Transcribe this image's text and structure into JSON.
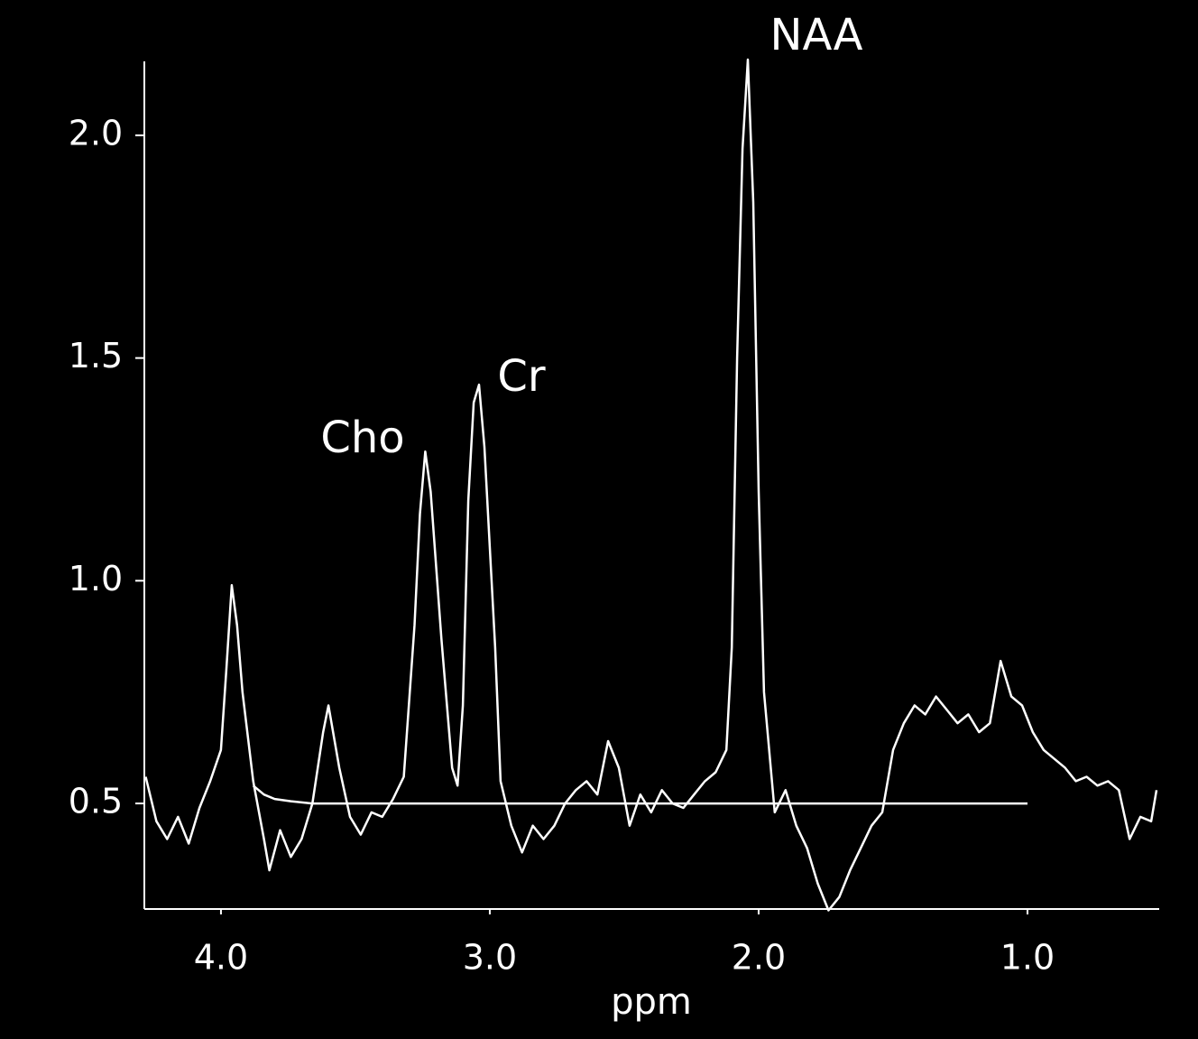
{
  "chart_data": {
    "type": "line",
    "xlabel": "ppm",
    "xlim": [
      4.285,
      0.51
    ],
    "ylim": [
      0.263,
      2.166
    ],
    "xticks": [
      {
        "value": 4,
        "label": "4.0"
      },
      {
        "value": 3,
        "label": "3.0"
      },
      {
        "value": 2,
        "label": "2.0"
      },
      {
        "value": 1,
        "label": "1.0"
      }
    ],
    "yticks": [
      0.5,
      {
        "value": 1,
        "label": "1.0"
      },
      1.5,
      {
        "value": 2,
        "label": "2.0"
      }
    ],
    "series": [
      {
        "color": "#ffffff",
        "x": [
          4.28,
          4.24,
          4.2,
          4.16,
          4.12,
          4.08,
          4.04,
          4.0,
          3.98,
          3.96,
          3.94,
          3.92,
          3.88,
          3.84,
          3.82,
          3.78,
          3.74,
          3.7,
          3.66,
          3.62,
          3.6,
          3.56,
          3.52,
          3.48,
          3.44,
          3.4,
          3.36,
          3.32,
          3.28,
          3.26,
          3.24,
          3.22,
          3.18,
          3.14,
          3.12,
          3.1,
          3.08,
          3.06,
          3.04,
          3.02,
          2.98,
          2.96,
          2.92,
          2.88,
          2.84,
          2.8,
          2.76,
          2.72,
          2.68,
          2.64,
          2.6,
          2.56,
          2.52,
          2.48,
          2.44,
          2.4,
          2.36,
          2.32,
          2.28,
          2.24,
          2.2,
          2.16,
          2.12,
          2.1,
          2.08,
          2.06,
          2.04,
          2.02,
          2.0,
          1.98,
          1.94,
          1.9,
          1.86,
          1.82,
          1.78,
          1.74,
          1.7,
          1.66,
          1.62,
          1.58,
          1.54,
          1.5,
          1.46,
          1.42,
          1.38,
          1.34,
          1.3,
          1.26,
          1.22,
          1.18,
          1.14,
          1.1,
          1.06,
          1.02,
          0.98,
          0.94,
          0.9,
          0.86,
          0.82,
          0.78,
          0.74,
          0.7,
          0.66,
          0.62,
          0.58,
          0.54,
          0.52
        ],
        "values": [
          0.56,
          0.46,
          0.42,
          0.47,
          0.41,
          0.49,
          0.55,
          0.62,
          0.8,
          0.99,
          0.9,
          0.75,
          0.55,
          0.42,
          0.35,
          0.44,
          0.38,
          0.42,
          0.5,
          0.66,
          0.72,
          0.58,
          0.47,
          0.43,
          0.48,
          0.47,
          0.51,
          0.56,
          0.9,
          1.15,
          1.29,
          1.2,
          0.87,
          0.58,
          0.54,
          0.72,
          1.18,
          1.4,
          1.44,
          1.3,
          0.85,
          0.55,
          0.45,
          0.39,
          0.45,
          0.42,
          0.45,
          0.5,
          0.53,
          0.55,
          0.52,
          0.64,
          0.58,
          0.45,
          0.52,
          0.48,
          0.53,
          0.5,
          0.49,
          0.52,
          0.55,
          0.57,
          0.62,
          0.85,
          1.5,
          1.97,
          2.17,
          1.85,
          1.2,
          0.75,
          0.48,
          0.53,
          0.45,
          0.4,
          0.32,
          0.26,
          0.29,
          0.35,
          0.4,
          0.45,
          0.48,
          0.62,
          0.68,
          0.72,
          0.7,
          0.74,
          0.71,
          0.68,
          0.7,
          0.66,
          0.68,
          0.82,
          0.74,
          0.72,
          0.66,
          0.62,
          0.6,
          0.58,
          0.55,
          0.56,
          0.54,
          0.55,
          0.53,
          0.42,
          0.47,
          0.46,
          0.53
        ]
      },
      {
        "color": "#ffffff",
        "x": [
          3.88,
          3.84,
          3.8,
          3.74,
          3.66,
          3.6,
          1.0
        ],
        "values": [
          0.54,
          0.52,
          0.51,
          0.505,
          0.5,
          0.5,
          0.5
        ]
      }
    ],
    "annotations": [
      "NAA",
      "Cr",
      "Cho"
    ]
  }
}
